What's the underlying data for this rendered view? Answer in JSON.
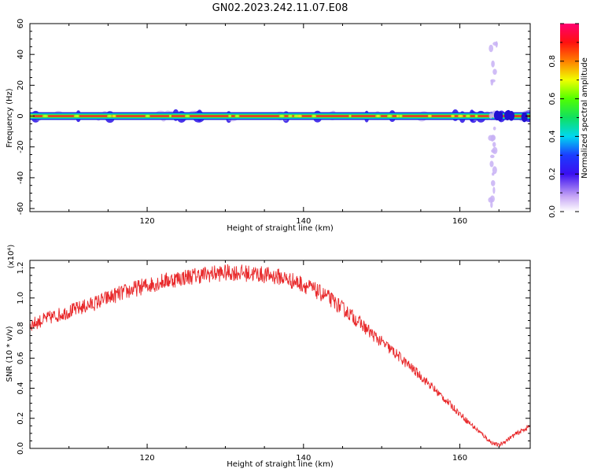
{
  "title": "GN02.2023.242.11.07.E08",
  "chart_data": [
    {
      "type": "heatmap",
      "xlabel": "Height of straight line (km)",
      "ylabel": "Frequency (Hz)",
      "xlim": [
        105,
        169
      ],
      "ylim": [
        -62,
        60
      ],
      "xticks": [
        120,
        140,
        160
      ],
      "yticks": [
        60,
        40,
        20,
        0,
        -20,
        -40,
        -60
      ],
      "ridge_frequency_hz": 0,
      "ridge_halfwidth_hz": 2,
      "scatter_column_km": 164.3,
      "colorbar": {
        "label": "Normalized spectral amplitude",
        "range": [
          0,
          1
        ],
        "ticks": [
          0.0,
          0.2,
          0.4,
          0.6,
          0.8
        ]
      }
    },
    {
      "type": "line",
      "xlabel": "Height of straight line (km)",
      "ylabel": "SNR (10 * v/v)",
      "y_multiplier": "(x10⁴)",
      "xlim": [
        105,
        169
      ],
      "ylim": [
        0,
        1.25
      ],
      "xticks": [
        120,
        140,
        160
      ],
      "yticks": [
        0.0,
        0.2,
        0.4,
        0.6,
        0.8,
        1.0,
        1.2
      ],
      "color": "#e8282a",
      "series": [
        {
          "x": [
            105,
            107,
            110,
            113,
            116,
            119,
            122,
            125,
            128,
            131,
            134,
            137,
            140,
            143,
            146,
            149,
            152,
            155,
            158,
            161,
            164,
            165,
            167,
            169
          ],
          "values": [
            0.82,
            0.86,
            0.91,
            0.96,
            1.02,
            1.07,
            1.11,
            1.14,
            1.16,
            1.17,
            1.16,
            1.14,
            1.09,
            1.01,
            0.89,
            0.75,
            0.62,
            0.48,
            0.33,
            0.18,
            0.04,
            0.02,
            0.09,
            0.15
          ]
        }
      ]
    }
  ]
}
